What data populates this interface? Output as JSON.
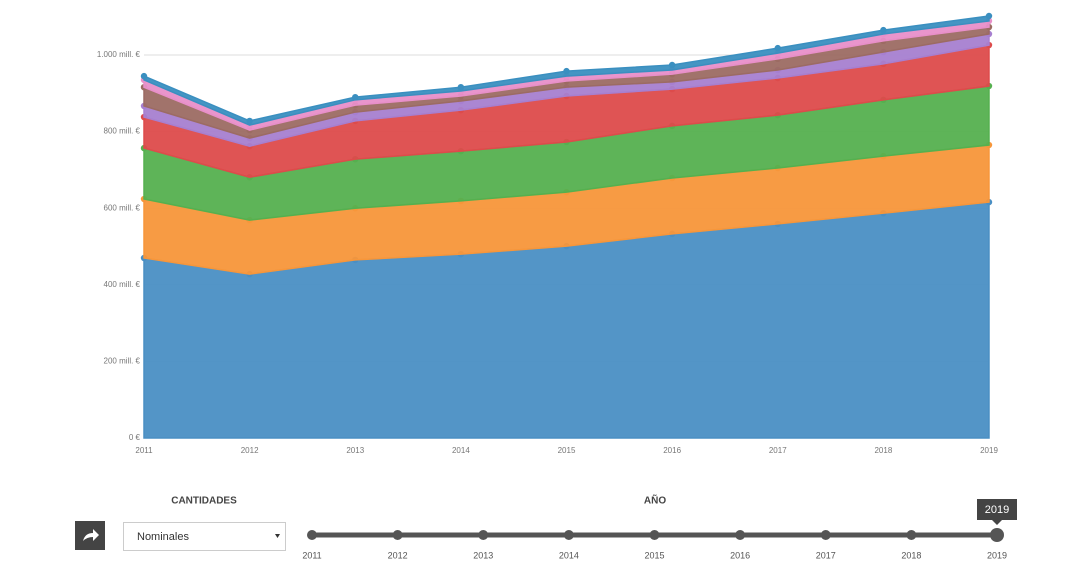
{
  "chart_data": {
    "type": "stacked-area",
    "categories": [
      "2011",
      "2012",
      "2013",
      "2014",
      "2015",
      "2016",
      "2017",
      "2018",
      "2019"
    ],
    "series": [
      {
        "color": "#4a8fc4",
        "values": [
          470,
          428,
          465,
          480,
          501,
          533,
          559,
          587,
          616
        ]
      },
      {
        "color": "#f7963a",
        "values": [
          154,
          141,
          135,
          139,
          141,
          146,
          146,
          149,
          149
        ]
      },
      {
        "color": "#55b04f",
        "values": [
          133,
          112,
          128,
          130,
          131,
          136,
          138,
          147,
          154
        ]
      },
      {
        "color": "#dd4b4b",
        "values": [
          81,
          81,
          100,
          107,
          120,
          96,
          97,
          94,
          107
        ]
      },
      {
        "color": "#a77fd0",
        "values": [
          29,
          21,
          23,
          24,
          23,
          19,
          21,
          31,
          29
        ]
      },
      {
        "color": "#9c6b63",
        "values": [
          49,
          21,
          18,
          13,
          16,
          20,
          29,
          29,
          18
        ]
      },
      {
        "color": "#e88fc9",
        "values": [
          19,
          13,
          14,
          13,
          13,
          11,
          15,
          18,
          16
        ]
      },
      {
        "color": "#3a8fc0",
        "values": [
          10,
          11,
          7,
          10,
          13,
          13,
          13,
          10,
          13
        ]
      }
    ],
    "ylim": [
      0,
      1140
    ],
    "yticks": [
      {
        "value": 0,
        "label": "0 €"
      },
      {
        "value": 200,
        "label": "200 mill. €"
      },
      {
        "value": 400,
        "label": "400 mill. €"
      },
      {
        "value": 600,
        "label": "600 mill. €"
      },
      {
        "value": 800,
        "label": "800 mill. €"
      },
      {
        "value": 1000,
        "label": "1.000 mill. €"
      }
    ],
    "grid": true
  },
  "controls": {
    "quantities_label": "CANTIDADES",
    "quantities_value": "Nominales",
    "year_label": "AÑO",
    "slider": {
      "years": [
        "2011",
        "2012",
        "2013",
        "2014",
        "2015",
        "2016",
        "2017",
        "2018",
        "2019"
      ],
      "selected": "2019"
    }
  }
}
